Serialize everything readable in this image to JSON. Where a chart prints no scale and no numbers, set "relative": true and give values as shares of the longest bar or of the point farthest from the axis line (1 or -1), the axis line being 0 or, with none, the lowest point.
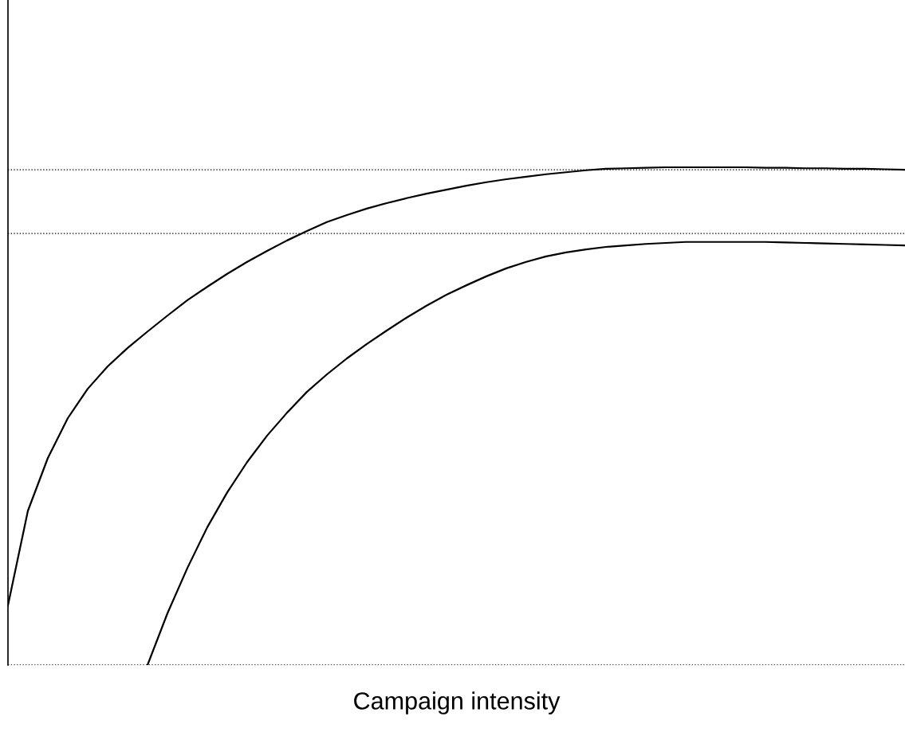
{
  "chart_data": {
    "type": "line",
    "xlabel": "Campaign intensity",
    "relative": true,
    "grid": false,
    "legend": false,
    "marker": "none",
    "line_style": "solid",
    "tick_labels": false,
    "categories": [
      null,
      null,
      null,
      null,
      null,
      null,
      null,
      null,
      null,
      null,
      null,
      null,
      null,
      null,
      null,
      null,
      null,
      null,
      null,
      null,
      null,
      null,
      null,
      null,
      null,
      null,
      null,
      null,
      null,
      null,
      null,
      null,
      null,
      null,
      null,
      null,
      null,
      null,
      null,
      null,
      null,
      null,
      null,
      null,
      null,
      null
    ],
    "series": [
      {
        "color": "#000000",
        "values": [
          0.12,
          0.31,
          0.416,
          0.496,
          0.555,
          0.6,
          0.637,
          0.67,
          0.702,
          0.733,
          0.76,
          0.786,
          0.81,
          0.832,
          0.853,
          0.872,
          0.89,
          0.904,
          0.917,
          0.928,
          0.938,
          0.947,
          0.955,
          0.963,
          0.97,
          0.976,
          0.981,
          0.986,
          0.99,
          0.994,
          0.997,
          0.998,
          0.999,
          1.0,
          1.0,
          1.0,
          1.0,
          1.0,
          0.999,
          0.999,
          0.998,
          0.998,
          0.997,
          0.997,
          0.996,
          0.995
        ]
      },
      {
        "color": "#000000",
        "values": [
          null,
          null,
          null,
          null,
          null,
          null,
          null,
          0,
          0.104,
          0.195,
          0.277,
          0.347,
          0.408,
          0.461,
          0.507,
          0.549,
          0.584,
          0.616,
          0.645,
          0.672,
          0.698,
          0.722,
          0.744,
          0.763,
          0.781,
          0.797,
          0.81,
          0.821,
          0.829,
          0.835,
          0.84,
          0.843,
          0.846,
          0.848,
          0.85,
          0.85,
          0.85,
          0.85,
          0.85,
          0.849,
          0.848,
          0.847,
          0.846,
          0.845,
          0.844,
          0.843
        ]
      }
    ],
    "ref_lines": [
      {
        "axis": "y",
        "value": 0.995,
        "color": "#000000",
        "line_style": "dotted"
      },
      {
        "axis": "y",
        "value": 0.867,
        "color": "#000000",
        "line_style": "dotted"
      },
      {
        "axis": "y",
        "value": 0,
        "color": "#000000",
        "line_style": "dotted"
      }
    ]
  }
}
